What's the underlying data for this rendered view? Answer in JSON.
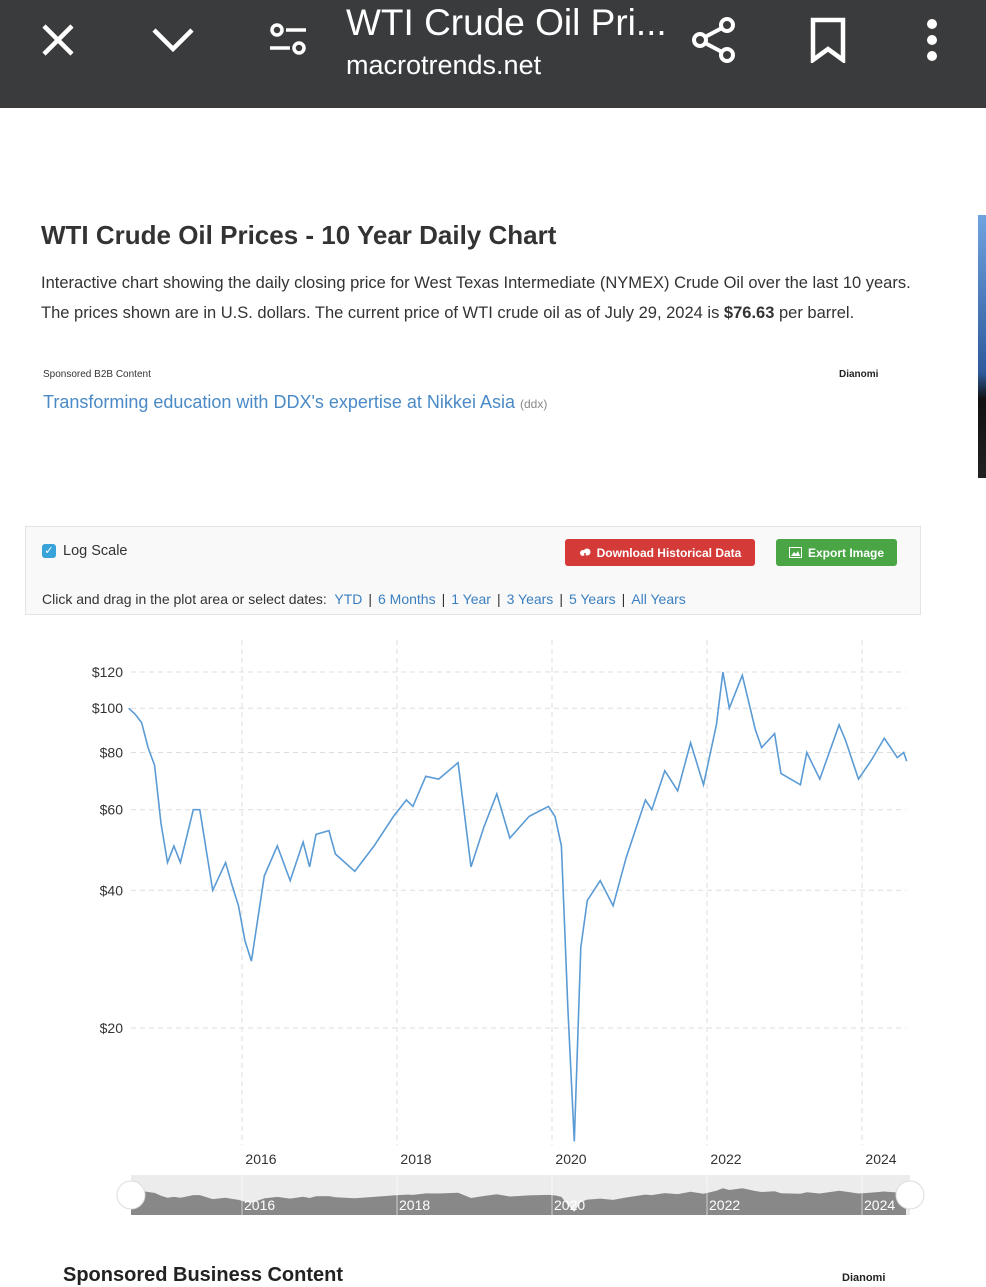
{
  "browser": {
    "title": "WTI Crude Oil Pri...",
    "url": "macrotrends.net",
    "icons": [
      "close-icon",
      "chevron-down-icon",
      "settings-sliders-icon",
      "share-icon",
      "bookmark-icon",
      "more-vert-icon"
    ]
  },
  "page": {
    "heading": "WTI Crude Oil Prices - 10 Year Daily Chart",
    "desc_line1": "Interactive chart showing the daily closing price for West Texas Intermediate (NYMEX) Crude Oil over the last 10 years.",
    "desc_line2_pre": "The prices shown are in U.S. dollars. The current price of WTI crude oil as of July 29, 2024 is ",
    "desc_price": "$76.63",
    "desc_line2_post": " per barrel.",
    "sponsored_label": "Sponsored B2B Content",
    "sponsor_brand": "Dianomi",
    "ad_text": "Transforming education with DDX's expertise at Nikkei Asia",
    "ad_source": "(ddx)",
    "bottom_heading": "Sponsored Business Content",
    "bottom_brand": "Dianomi"
  },
  "controls": {
    "log_scale_label": "Log Scale",
    "log_scale_checked": true,
    "download_label": "Download Historical Data",
    "export_label": "Export Image",
    "range_prompt": "Click and drag in the plot area or select dates:",
    "ranges": [
      "YTD",
      "6 Months",
      "1 Year",
      "3 Years",
      "5 Years",
      "All Years"
    ],
    "colors": {
      "download": "#d33a38",
      "export": "#4aa545",
      "line": "#5b9bd5"
    }
  },
  "chart_data": {
    "type": "line",
    "yscale": "log",
    "grid": true,
    "ylim": [
      11,
      125
    ],
    "xlim": [
      "2014-07",
      "2024-07"
    ],
    "y_ticks": [
      "$20",
      "$40",
      "$60",
      "$80",
      "$100",
      "$120"
    ],
    "y_tick_values": [
      20,
      40,
      60,
      80,
      100,
      120
    ],
    "x_ticks": [
      "2016",
      "2018",
      "2020",
      "2022",
      "2024"
    ],
    "series": [
      {
        "points": [
          [
            "2014-07",
            100
          ],
          [
            "2014-08",
            97
          ],
          [
            "2014-09",
            93
          ],
          [
            "2014-10",
            82
          ],
          [
            "2014-11",
            75
          ],
          [
            "2014-12",
            56
          ],
          [
            "2015-01",
            46
          ],
          [
            "2015-02",
            50
          ],
          [
            "2015-03",
            46
          ],
          [
            "2015-05",
            60
          ],
          [
            "2015-06",
            60
          ],
          [
            "2015-07",
            49
          ],
          [
            "2015-08",
            40
          ],
          [
            "2015-10",
            46
          ],
          [
            "2015-11",
            41
          ],
          [
            "2015-12",
            37
          ],
          [
            "2016-01",
            31
          ],
          [
            "2016-02",
            28
          ],
          [
            "2016-04",
            43
          ],
          [
            "2016-06",
            50
          ],
          [
            "2016-08",
            42
          ],
          [
            "2016-10",
            51
          ],
          [
            "2016-11",
            45
          ],
          [
            "2016-12",
            53
          ],
          [
            "2017-02",
            54
          ],
          [
            "2017-03",
            48
          ],
          [
            "2017-06",
            44
          ],
          [
            "2017-09",
            50
          ],
          [
            "2017-12",
            58
          ],
          [
            "2018-02",
            63
          ],
          [
            "2018-03",
            61
          ],
          [
            "2018-05",
            71
          ],
          [
            "2018-07",
            70
          ],
          [
            "2018-10",
            76
          ],
          [
            "2018-12",
            45
          ],
          [
            "2019-02",
            55
          ],
          [
            "2019-04",
            65
          ],
          [
            "2019-06",
            52
          ],
          [
            "2019-09",
            58
          ],
          [
            "2019-12",
            61
          ],
          [
            "2020-01",
            58
          ],
          [
            "2020-02",
            50
          ],
          [
            "2020-03",
            22
          ],
          [
            "2020-04",
            11.3
          ],
          [
            "2020-05",
            30
          ],
          [
            "2020-06",
            38
          ],
          [
            "2020-08",
            42
          ],
          [
            "2020-10",
            37
          ],
          [
            "2020-12",
            47
          ],
          [
            "2021-03",
            63
          ],
          [
            "2021-04",
            60
          ],
          [
            "2021-06",
            73
          ],
          [
            "2021-08",
            66
          ],
          [
            "2021-10",
            84
          ],
          [
            "2021-12",
            68
          ],
          [
            "2022-02",
            92
          ],
          [
            "2022-03",
            120
          ],
          [
            "2022-04",
            100
          ],
          [
            "2022-06",
            118
          ],
          [
            "2022-08",
            90
          ],
          [
            "2022-09",
            82
          ],
          [
            "2022-11",
            88
          ],
          [
            "2022-12",
            72
          ],
          [
            "2023-03",
            68
          ],
          [
            "2023-04",
            80
          ],
          [
            "2023-06",
            70
          ],
          [
            "2023-09",
            92
          ],
          [
            "2023-10",
            85
          ],
          [
            "2023-12",
            70
          ],
          [
            "2024-02",
            77
          ],
          [
            "2024-04",
            86
          ],
          [
            "2024-06",
            78
          ],
          [
            "2024-07",
            80
          ],
          [
            "2024-07-29",
            76.63
          ]
        ]
      }
    ]
  }
}
